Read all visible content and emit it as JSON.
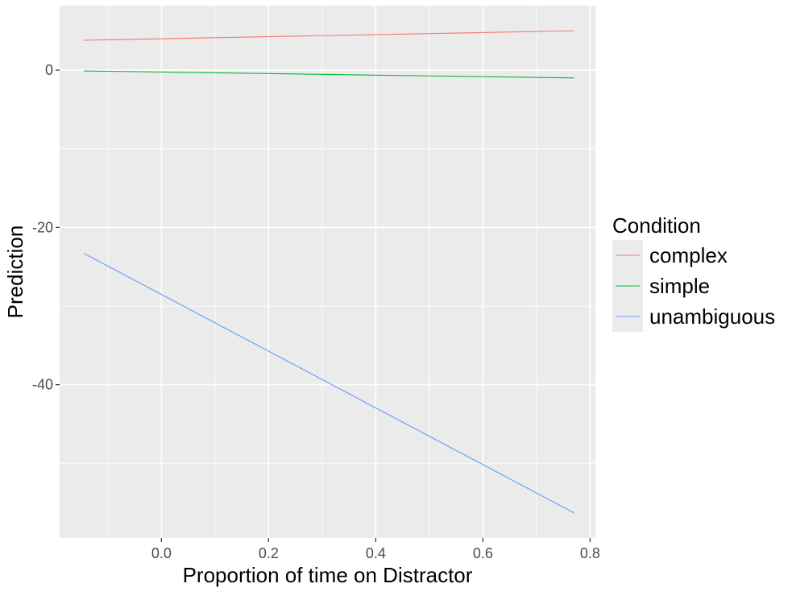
{
  "chart_data": {
    "type": "line",
    "title": "",
    "xlabel": "Proportion of time on Distractor",
    "ylabel": "Prediction",
    "xlim": [
      -0.19,
      0.81
    ],
    "ylim": [
      -59.5,
      8.2
    ],
    "x_ticks": [
      0.0,
      0.2,
      0.4,
      0.6,
      0.8
    ],
    "x_tick_labels": [
      "0.0",
      "0.2",
      "0.4",
      "0.6",
      "0.8"
    ],
    "y_ticks": [
      -40,
      -20,
      0
    ],
    "y_tick_labels": [
      "-40",
      "-20",
      "0"
    ],
    "grid": true,
    "panel_background": "#ebebeb",
    "legend": {
      "title": "Condition",
      "position": "right"
    },
    "series": [
      {
        "name": "complex",
        "color": "#F8766D",
        "x": [
          -0.145,
          0.77
        ],
        "y": [
          3.8,
          5.0
        ]
      },
      {
        "name": "simple",
        "color": "#00BA38",
        "x": [
          -0.145,
          0.77
        ],
        "y": [
          -0.1,
          -1.0
        ]
      },
      {
        "name": "unambiguous",
        "color": "#619CFF",
        "x": [
          -0.145,
          0.77
        ],
        "y": [
          -23.3,
          -56.3
        ]
      }
    ]
  }
}
